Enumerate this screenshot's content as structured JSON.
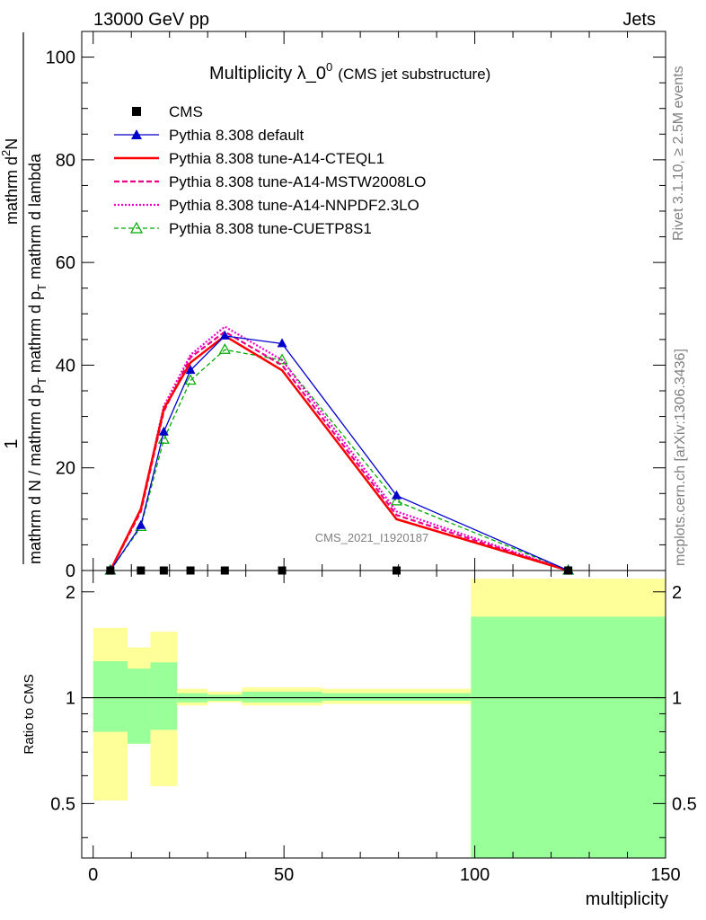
{
  "header": {
    "left": "13000 GeV pp",
    "right": "Jets"
  },
  "title_main": "Multiplicity λ_0",
  "title_sup": "0",
  "title_sub": "(CMS jet substructure)",
  "side_top": "Rivet 3.1.10, ≥ 2.5M events",
  "side_bottom": "mcplots.cern.ch [arXiv:1306.3436]",
  "watermark": "CMS_2021_I1920187",
  "ylabel_num_1": "1",
  "ylabel_den_1": "mathrm d N / mathrm d p",
  "ylabel_den_sub": "T",
  "ylabel_den_2": "mathrm d lambda",
  "ylabel_num_2": "mathrm d",
  "ylabel_num_sup": "2",
  "ylabel_num_3": "N",
  "ylabel_num_den_1": "mathrm d p",
  "ylabel_num_den_sub": "T",
  "ylabel_num_den_2": " mathrm d lambda",
  "ratio_ylabel": "Ratio to CMS",
  "xlabel": "multiplicity",
  "colors": {
    "default": "#0000cc",
    "cteql1": "#ff0000",
    "mstw": "#e8008a",
    "nnpdf": "#ee00cc",
    "cuetp8s1": "#00aa00",
    "band_inner": "#99ff99",
    "band_outer": "#ffff99"
  },
  "chart_data": {
    "type": "line",
    "x": [
      4.5,
      12.5,
      18.5,
      25.5,
      34.5,
      49.5,
      79.5,
      124.5
    ],
    "xlim": [
      -3,
      150
    ],
    "main_ylim": [
      0,
      105
    ],
    "ratio_ylim": [
      0.35,
      2.3
    ],
    "xticks": [
      "0",
      "50",
      "100",
      "150"
    ],
    "xtick_values": [
      0,
      50,
      100,
      150
    ],
    "yticks": [
      "0",
      "20",
      "40",
      "60",
      "80",
      "100"
    ],
    "ytick_values": [
      0,
      20,
      40,
      60,
      80,
      100
    ],
    "ratio_yticks": [
      "0.5",
      "1",
      "2"
    ],
    "ratio_ytick_values": [
      0.5,
      1,
      2
    ],
    "series": [
      {
        "name": "CMS",
        "key": "cms",
        "values": [
          0,
          0,
          0,
          0,
          0,
          0,
          0,
          0
        ]
      },
      {
        "name": "Pythia 8.308 default",
        "key": "default",
        "values": [
          0.0,
          8.8,
          27.0,
          39.0,
          45.7,
          44.2,
          14.6,
          0.0
        ]
      },
      {
        "name": "Pythia 8.308 tune-A14-CTEQL1",
        "key": "cteql1",
        "values": [
          0.0,
          12.0,
          31.5,
          40.5,
          45.7,
          39.0,
          10.0,
          0.0
        ]
      },
      {
        "name": "Pythia 8.308 tune-A14-MSTW2008LO",
        "key": "mstw",
        "values": [
          0.0,
          11.5,
          31.0,
          41.5,
          46.5,
          40.0,
          10.8,
          0.0
        ]
      },
      {
        "name": "Pythia 8.308 tune-A14-NNPDF2.3LO",
        "key": "nnpdf",
        "values": [
          0.0,
          12.0,
          32.0,
          42.0,
          47.5,
          41.0,
          11.5,
          0.0
        ]
      },
      {
        "name": "Pythia 8.308 tune-CUETP8S1",
        "key": "cuetp8s1",
        "values": [
          0.0,
          8.5,
          25.5,
          37.0,
          43.0,
          41.0,
          13.5,
          0.0
        ]
      }
    ],
    "ratio_bands": [
      {
        "xlo": 0,
        "xhi": 9,
        "inner": [
          0.8,
          1.27
        ],
        "outer": [
          0.51,
          1.58
        ]
      },
      {
        "xlo": 9,
        "xhi": 15,
        "inner": [
          0.74,
          1.21
        ],
        "outer": [
          0.74,
          1.39
        ]
      },
      {
        "xlo": 15,
        "xhi": 22,
        "inner": [
          0.81,
          1.26
        ],
        "outer": [
          0.56,
          1.54
        ]
      },
      {
        "xlo": 22,
        "xhi": 30,
        "inner": [
          0.97,
          1.03
        ],
        "outer": [
          0.95,
          1.06
        ]
      },
      {
        "xlo": 30,
        "xhi": 39,
        "inner": [
          0.98,
          1.02
        ],
        "outer": [
          0.97,
          1.04
        ]
      },
      {
        "xlo": 39,
        "xhi": 60,
        "inner": [
          0.97,
          1.04
        ],
        "outer": [
          0.95,
          1.07
        ]
      },
      {
        "xlo": 60,
        "xhi": 99,
        "inner": [
          0.98,
          1.03
        ],
        "outer": [
          0.96,
          1.06
        ]
      },
      {
        "xlo": 99,
        "xhi": 150,
        "inner": [
          0.35,
          1.7
        ],
        "outer": [
          0.35,
          2.18
        ]
      }
    ]
  }
}
